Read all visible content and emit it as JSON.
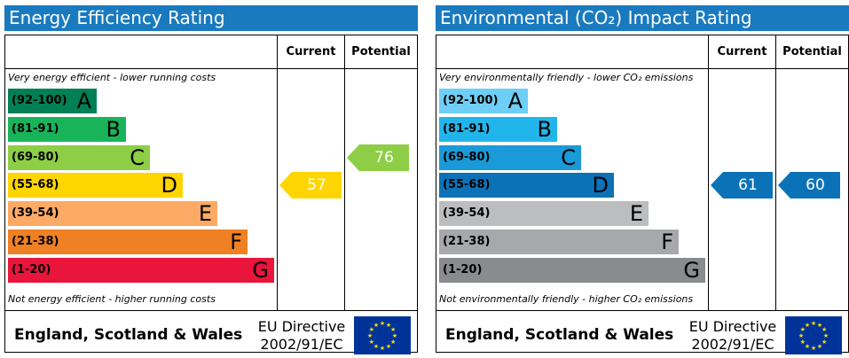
{
  "chart_data": [
    {
      "type": "bar",
      "title": "Energy Efficiency Rating",
      "columns": [
        "Current",
        "Potential"
      ],
      "note_top": "Very energy efficient - lower running costs",
      "note_bottom": "Not energy efficient - higher running costs",
      "bands": [
        {
          "range": "(92-100)",
          "letter": "A",
          "color": "#008054"
        },
        {
          "range": "(81-91)",
          "letter": "B",
          "color": "#19b459"
        },
        {
          "range": "(69-80)",
          "letter": "C",
          "color": "#8dce46"
        },
        {
          "range": "(55-68)",
          "letter": "D",
          "color": "#ffd500"
        },
        {
          "range": "(39-54)",
          "letter": "E",
          "color": "#fcaa65"
        },
        {
          "range": "(21-38)",
          "letter": "F",
          "color": "#ef8023"
        },
        {
          "range": "(1-20)",
          "letter": "G",
          "color": "#e9153b"
        }
      ],
      "current": {
        "value": "57",
        "band": "D",
        "color": "#ffd500"
      },
      "potential": {
        "value": "76",
        "band": "C",
        "color": "#8dce46"
      },
      "region": "England, Scotland & Wales",
      "directive": [
        "EU Directive",
        "2002/91/EC"
      ]
    },
    {
      "type": "bar",
      "title": "Environmental (CO₂) Impact Rating",
      "columns": [
        "Current",
        "Potential"
      ],
      "note_top": "Very environmentally friendly - lower CO₂ emissions",
      "note_bottom": "Not environmentally friendly - higher CO₂ emissions",
      "bands": [
        {
          "range": "(92-100)",
          "letter": "A",
          "color": "#6ecff6"
        },
        {
          "range": "(81-91)",
          "letter": "B",
          "color": "#22b5eb"
        },
        {
          "range": "(69-80)",
          "letter": "C",
          "color": "#1a9ad8"
        },
        {
          "range": "(55-68)",
          "letter": "D",
          "color": "#0c72b8"
        },
        {
          "range": "(39-54)",
          "letter": "E",
          "color": "#bbbdbf"
        },
        {
          "range": "(21-38)",
          "letter": "F",
          "color": "#a6a8ab"
        },
        {
          "range": "(1-20)",
          "letter": "G",
          "color": "#898b8e"
        }
      ],
      "current": {
        "value": "61",
        "band": "D",
        "color": "#0c72b8"
      },
      "potential": {
        "value": "60",
        "band": "D",
        "color": "#0c72b8"
      },
      "region": "England, Scotland & Wales",
      "directive": [
        "EU Directive",
        "2002/91/EC"
      ]
    }
  ],
  "colors": {
    "title_bar": "#1a7abf",
    "eu_flag": "#003399",
    "eu_stars": "#ffdd00"
  }
}
